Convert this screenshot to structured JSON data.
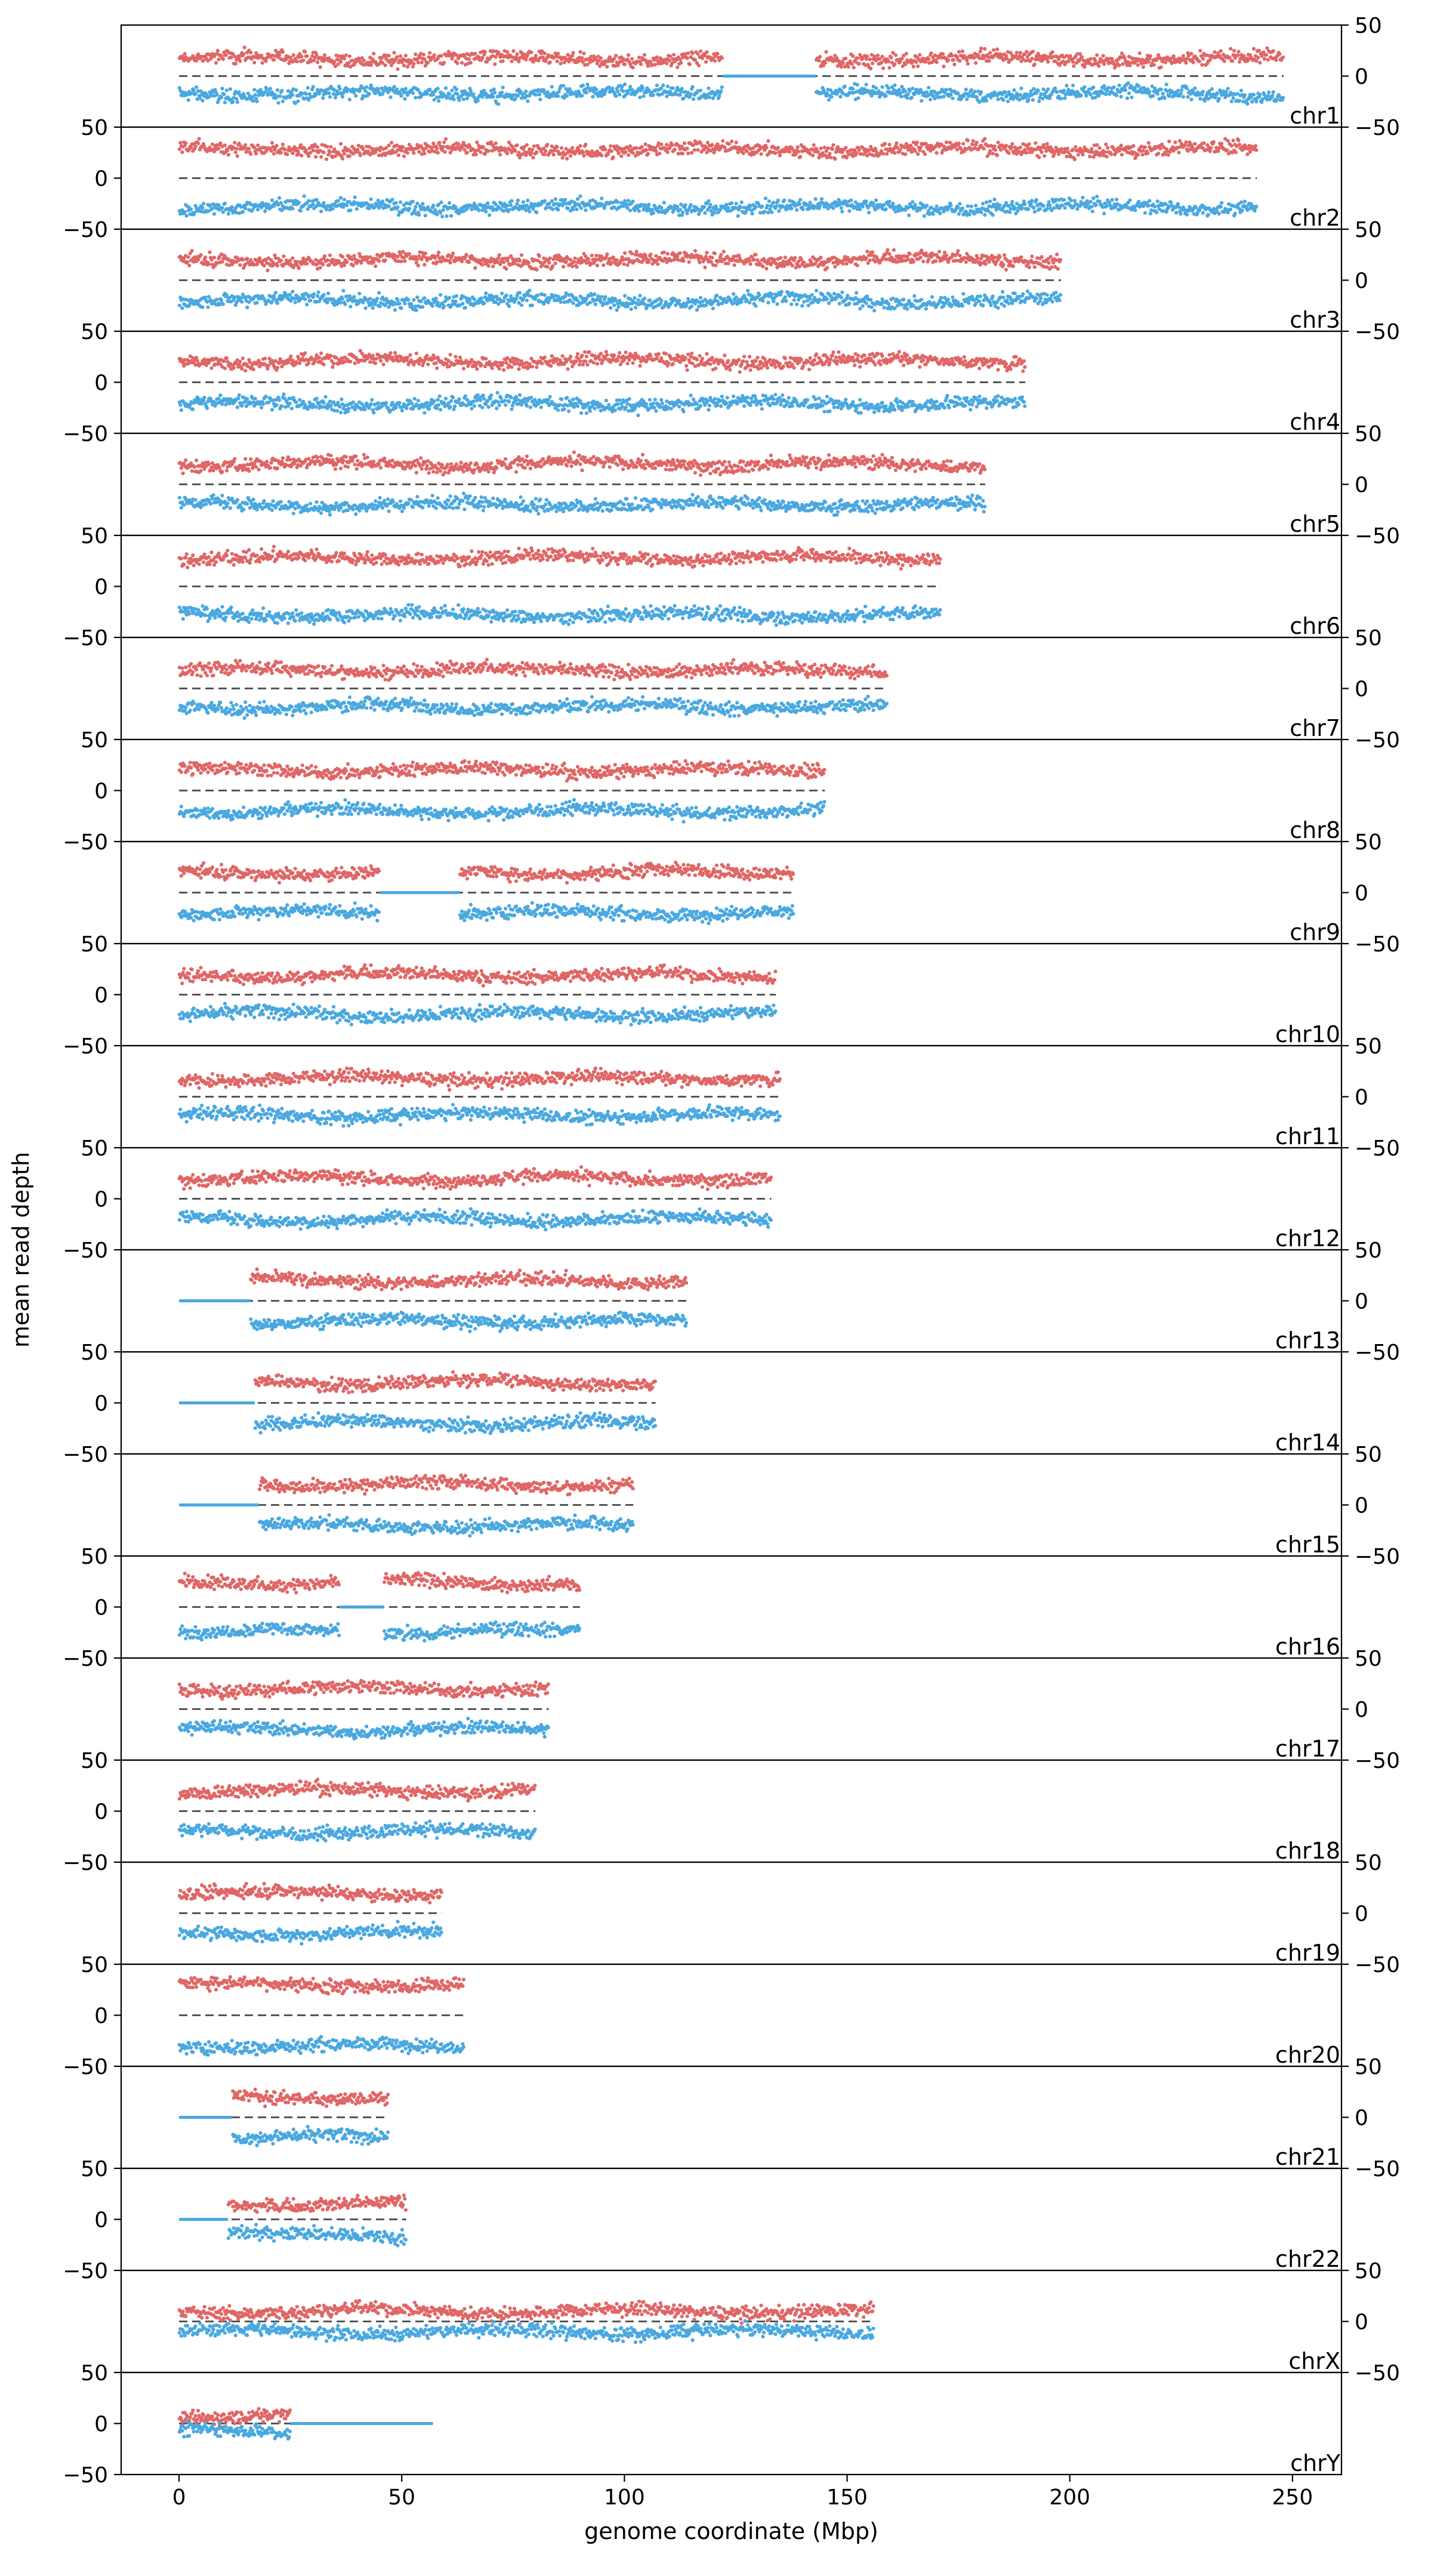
{
  "chart_data": {
    "type": "scatter",
    "title": "",
    "xlabel": "genome coordinate (Mbp)",
    "ylabel": "mean read depth",
    "xlim": [
      -13,
      261
    ],
    "x_ticks": [
      0,
      50,
      100,
      150,
      200,
      250
    ],
    "ylim": [
      -50,
      50
    ],
    "y_ticks": [
      50,
      0,
      -50
    ],
    "y_tick_labels": [
      "50",
      "0",
      "−50"
    ],
    "grid": false,
    "legend": "none",
    "series_colors": {
      "top": "#e06666",
      "bottom": "#4aa8e0",
      "baseline": "#555555"
    },
    "note_series": "Each panel plots a mirrored pair of dot series: per-bin read depth above zero (red) and below zero (blue), with a dashed zero line.",
    "panels": [
      {
        "label": "chr1",
        "length": 248,
        "top_level": 17,
        "gaps": [
          [
            122,
            143
          ]
        ]
      },
      {
        "label": "chr2",
        "length": 242,
        "top_level": 28,
        "gaps": []
      },
      {
        "label": "chr3",
        "length": 198,
        "top_level": 20,
        "gaps": []
      },
      {
        "label": "chr4",
        "length": 190,
        "top_level": 21,
        "gaps": []
      },
      {
        "label": "chr5",
        "length": 181,
        "top_level": 20,
        "gaps": []
      },
      {
        "label": "chr6",
        "length": 171,
        "top_level": 28,
        "gaps": []
      },
      {
        "label": "chr7",
        "length": 159,
        "top_level": 18,
        "gaps": []
      },
      {
        "label": "chr8",
        "length": 145,
        "top_level": 20,
        "gaps": []
      },
      {
        "label": "chr9",
        "length": 138,
        "top_level": 20,
        "gaps": [
          [
            45,
            63
          ]
        ]
      },
      {
        "label": "chr10",
        "length": 134,
        "top_level": 19,
        "gaps": []
      },
      {
        "label": "chr11",
        "length": 135,
        "top_level": 18,
        "gaps": []
      },
      {
        "label": "chr12",
        "length": 133,
        "top_level": 20,
        "gaps": []
      },
      {
        "label": "chr13",
        "length": 114,
        "top_level": 20,
        "gaps": [
          [
            0,
            16
          ]
        ]
      },
      {
        "label": "chr14",
        "length": 107,
        "top_level": 20,
        "gaps": [
          [
            0,
            17
          ]
        ]
      },
      {
        "label": "chr15",
        "length": 102,
        "top_level": 20,
        "gaps": [
          [
            0,
            18
          ]
        ]
      },
      {
        "label": "chr16",
        "length": 90,
        "top_level": 24,
        "gaps": [
          [
            36,
            46
          ]
        ]
      },
      {
        "label": "chr17",
        "length": 83,
        "top_level": 20,
        "gaps": []
      },
      {
        "label": "chr18",
        "length": 80,
        "top_level": 20,
        "gaps": []
      },
      {
        "label": "chr19",
        "length": 59,
        "top_level": 20,
        "gaps": []
      },
      {
        "label": "chr20",
        "length": 64,
        "top_level": 30,
        "gaps": []
      },
      {
        "label": "chr21",
        "length": 47,
        "top_level": 20,
        "gaps": [
          [
            0,
            12
          ]
        ]
      },
      {
        "label": "chr22",
        "length": 51,
        "top_level": 15,
        "gaps": [
          [
            0,
            11
          ]
        ]
      },
      {
        "label": "chrX",
        "length": 156,
        "top_level": 10,
        "gaps": []
      },
      {
        "label": "chrY",
        "length": 57,
        "top_level": 8,
        "gaps": [
          [
            25,
            57
          ]
        ]
      }
    ]
  }
}
